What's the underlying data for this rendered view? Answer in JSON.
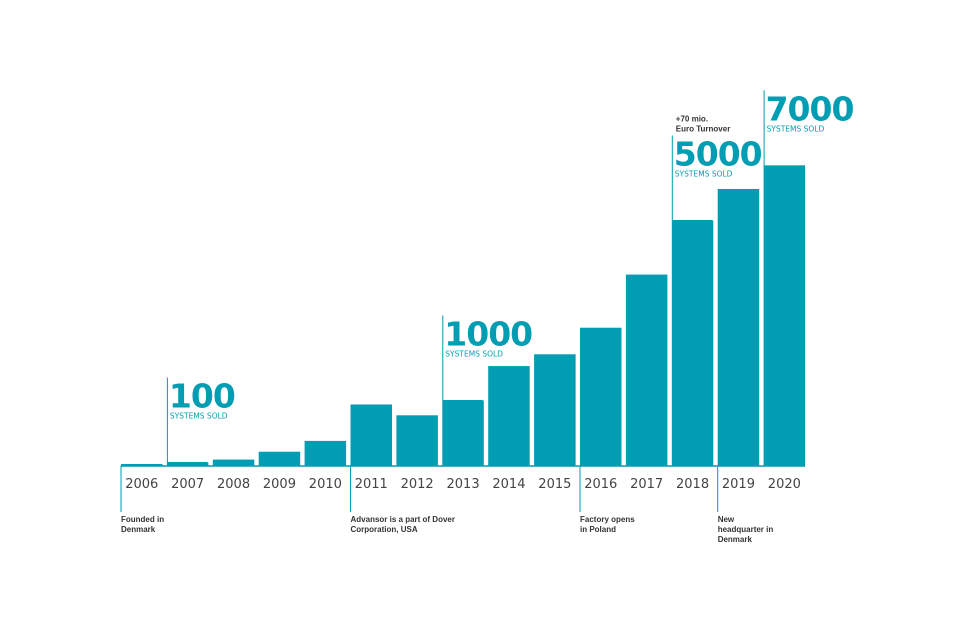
{
  "colors": {
    "bar": "#019db2",
    "accent": "#019db2",
    "text": "#444444",
    "divider": "#ffffff"
  },
  "chart_data": {
    "type": "bar",
    "categories": [
      "2006",
      "2007",
      "2008",
      "2009",
      "2010",
      "2011",
      "2012",
      "2013",
      "2014",
      "2015",
      "2016",
      "2017",
      "2018",
      "2019",
      "2020"
    ],
    "values": [
      0.5,
      3,
      6,
      14,
      25,
      62,
      51,
      66,
      101,
      113,
      140,
      194,
      249,
      281,
      305
    ],
    "ylim": [
      0,
      315
    ],
    "milestones": [
      {
        "category": "2007",
        "number": "100",
        "caption": "SYSTEMS SOLD"
      },
      {
        "category": "2013",
        "number": "1000",
        "caption": "SYSTEMS SOLD"
      },
      {
        "category": "2018",
        "number": "5000",
        "caption": "SYSTEMS SOLD",
        "note": [
          "+70 mio.",
          "Euro Turnover"
        ]
      },
      {
        "category": "2020",
        "number": "7000",
        "caption": "SYSTEMS SOLD"
      }
    ],
    "events": [
      {
        "category": "2006",
        "lines": [
          "Founded in",
          "Denmark"
        ]
      },
      {
        "category": "2011",
        "lines": [
          "Advansor is a part of Dover",
          "Corporation, USA"
        ]
      },
      {
        "category": "2016",
        "lines": [
          "Factory opens",
          "in Poland"
        ]
      },
      {
        "category": "2019",
        "lines": [
          "New",
          "headquarter in",
          "Denmark"
        ]
      }
    ]
  }
}
